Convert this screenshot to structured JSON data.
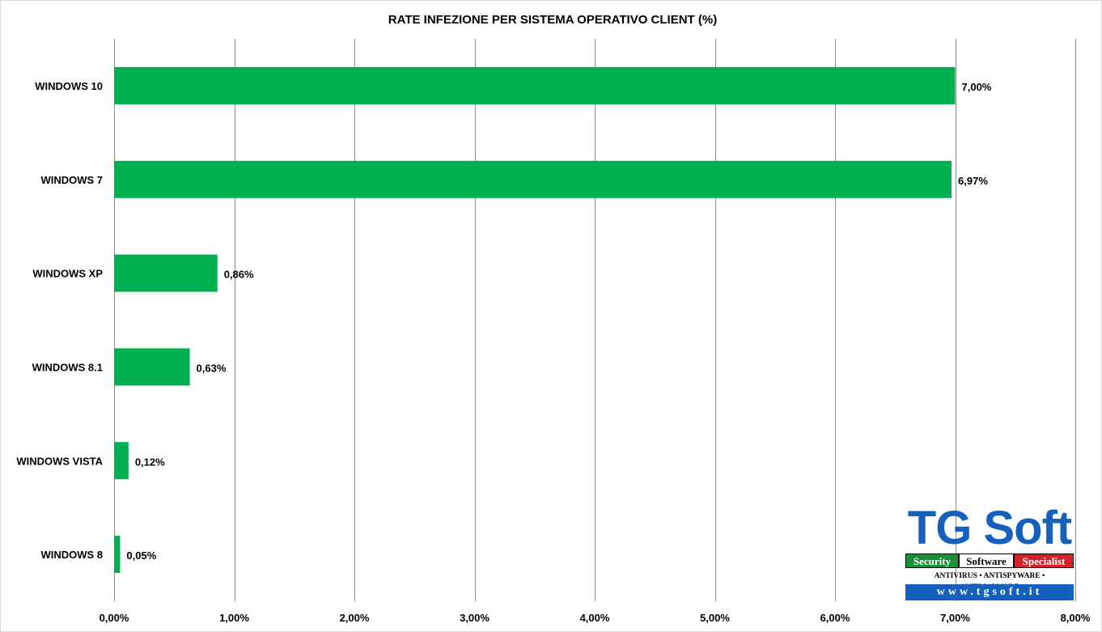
{
  "chart_data": {
    "type": "bar",
    "orientation": "horizontal",
    "title": "RATE INFEZIONE PER SISTEMA OPERATIVO CLIENT (%)",
    "categories": [
      "WINDOWS 10",
      "WINDOWS 7",
      "WINDOWS XP",
      "WINDOWS 8.1",
      "WINDOWS VISTA",
      "WINDOWS 8"
    ],
    "values": [
      7.0,
      6.97,
      0.86,
      0.63,
      0.12,
      0.05
    ],
    "value_labels": [
      "7,00%",
      "6,97%",
      "0,86%",
      "0,63%",
      "0,12%",
      "0,05%"
    ],
    "xlim": [
      0,
      8
    ],
    "x_ticks": [
      0,
      1,
      2,
      3,
      4,
      5,
      6,
      7,
      8
    ],
    "x_tick_labels": [
      "0,00%",
      "1,00%",
      "2,00%",
      "3,00%",
      "4,00%",
      "5,00%",
      "6,00%",
      "7,00%",
      "8,00%"
    ],
    "grid": true,
    "bar_color": "#00b050",
    "legend": "none"
  },
  "logo": {
    "brand": "TG Soft",
    "tags": [
      "Security",
      "Software",
      "Specialist"
    ],
    "subtitle": "ANTIVIRUS • ANTISPYWARE • ANTIMALWARE",
    "url": "www.tgsoft.it",
    "brand_color": "#1560bd",
    "tag_colors": [
      "#1a8f3a",
      "#ffffff",
      "#d2232a"
    ]
  }
}
